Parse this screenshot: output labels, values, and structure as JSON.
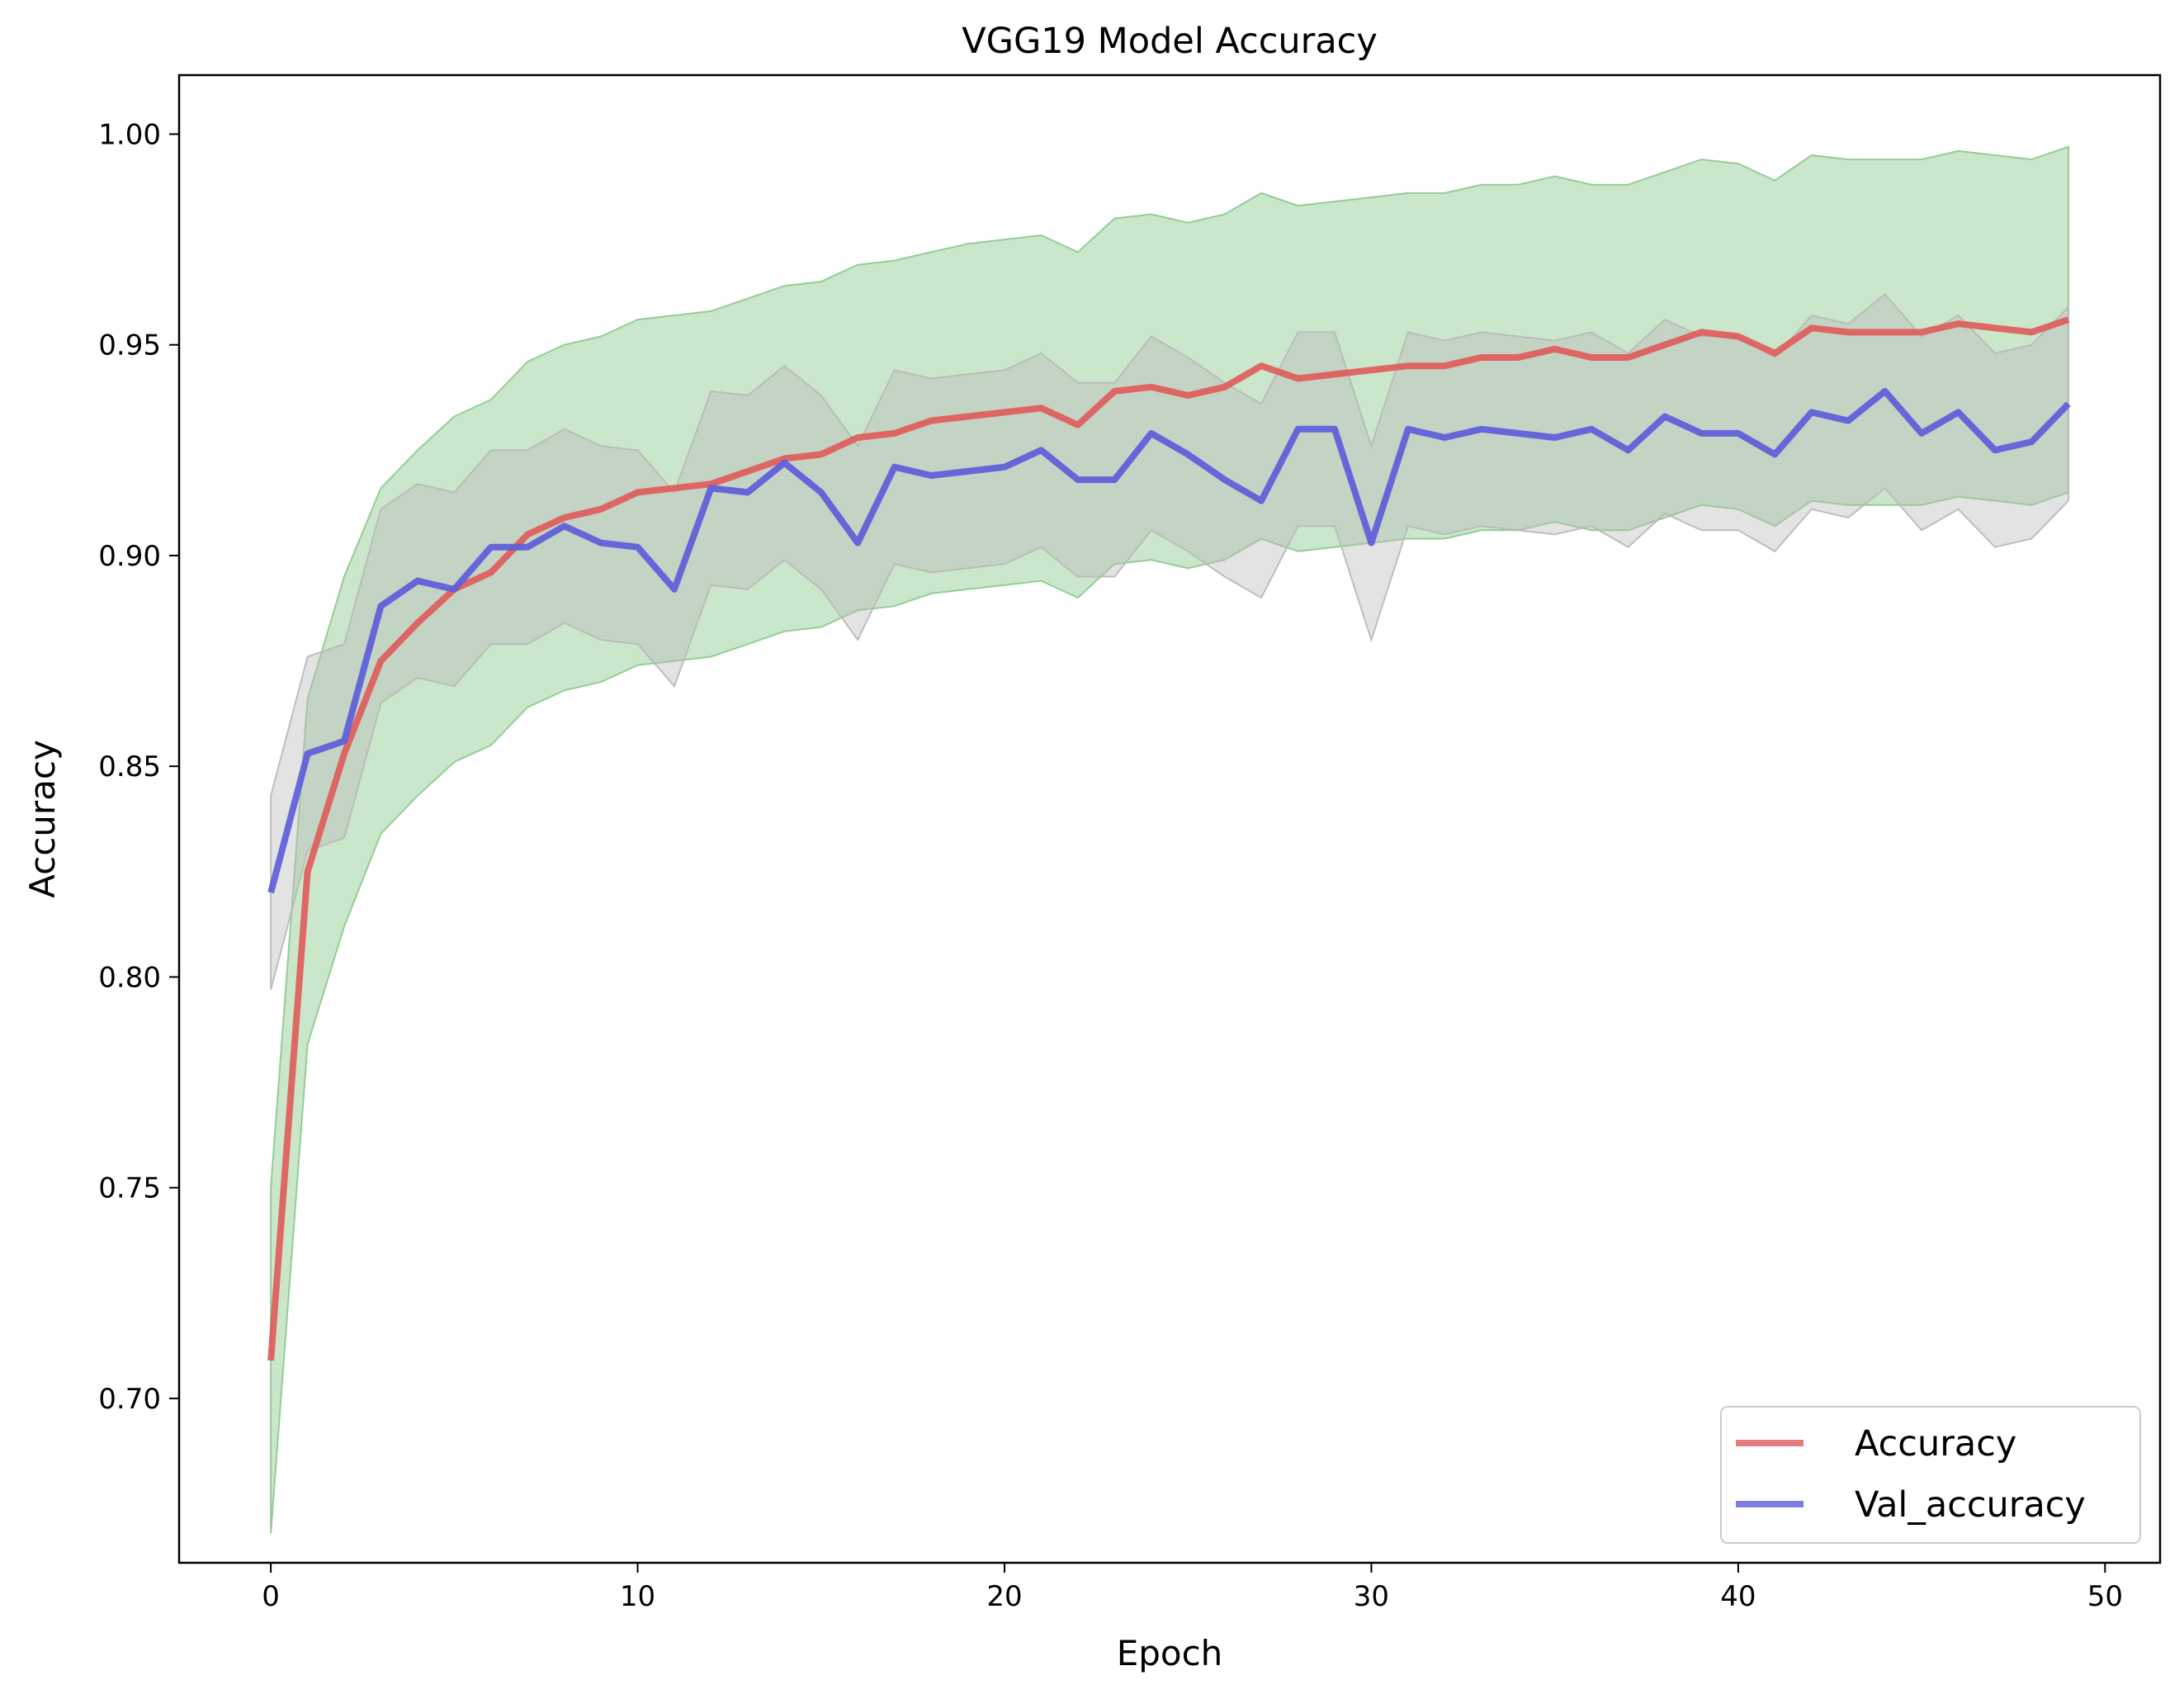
{
  "chart_data": {
    "type": "line",
    "title": "VGG19 Model Accuracy",
    "xlabel": "Epoch",
    "ylabel": "Accuracy",
    "xlim": [
      -2.5,
      51.5
    ],
    "ylim": [
      0.661,
      1.014
    ],
    "xticks": [
      0,
      10,
      20,
      30,
      40,
      50
    ],
    "yticks": [
      0.7,
      0.75,
      0.8,
      0.85,
      0.9,
      0.95,
      1.0
    ],
    "grid": false,
    "legend_position": "lower-right",
    "x": [
      0,
      1,
      2,
      3,
      4,
      5,
      6,
      7,
      8,
      9,
      10,
      11,
      12,
      13,
      14,
      15,
      16,
      17,
      18,
      19,
      20,
      21,
      22,
      23,
      24,
      25,
      26,
      27,
      28,
      29,
      30,
      31,
      32,
      33,
      34,
      35,
      36,
      37,
      38,
      39,
      40,
      41,
      42,
      43,
      44,
      45,
      46,
      47,
      48,
      49
    ],
    "series": [
      {
        "name": "Accuracy",
        "color": "#e05a5a",
        "band_color": "#8cc98c",
        "values": [
          0.709,
          0.825,
          0.853,
          0.875,
          0.884,
          0.892,
          0.896,
          0.905,
          0.909,
          0.911,
          0.915,
          0.916,
          0.917,
          0.92,
          0.923,
          0.924,
          0.928,
          0.929,
          0.932,
          0.933,
          0.934,
          0.935,
          0.931,
          0.939,
          0.94,
          0.938,
          0.94,
          0.945,
          0.942,
          0.943,
          0.944,
          0.945,
          0.945,
          0.947,
          0.947,
          0.949,
          0.947,
          0.947,
          0.95,
          0.953,
          0.952,
          0.948,
          0.954,
          0.953,
          0.953,
          0.953,
          0.955,
          0.954,
          0.953,
          0.956
        ],
        "band_upper": [
          0.75,
          0.866,
          0.895,
          0.916,
          0.925,
          0.933,
          0.937,
          0.946,
          0.95,
          0.952,
          0.956,
          0.957,
          0.958,
          0.961,
          0.964,
          0.965,
          0.969,
          0.97,
          0.972,
          0.974,
          0.975,
          0.976,
          0.972,
          0.98,
          0.981,
          0.979,
          0.981,
          0.986,
          0.983,
          0.984,
          0.985,
          0.986,
          0.986,
          0.988,
          0.988,
          0.99,
          0.988,
          0.988,
          0.991,
          0.994,
          0.993,
          0.989,
          0.995,
          0.994,
          0.994,
          0.994,
          0.996,
          0.995,
          0.994,
          0.997
        ],
        "band_lower": [
          0.668,
          0.784,
          0.812,
          0.834,
          0.843,
          0.851,
          0.855,
          0.864,
          0.868,
          0.87,
          0.874,
          0.875,
          0.876,
          0.879,
          0.882,
          0.883,
          0.887,
          0.888,
          0.891,
          0.892,
          0.893,
          0.894,
          0.89,
          0.898,
          0.899,
          0.897,
          0.899,
          0.904,
          0.901,
          0.902,
          0.903,
          0.904,
          0.904,
          0.906,
          0.906,
          0.908,
          0.906,
          0.906,
          0.909,
          0.912,
          0.911,
          0.907,
          0.913,
          0.912,
          0.912,
          0.912,
          0.914,
          0.913,
          0.912,
          0.915
        ]
      },
      {
        "name": "Val_accuracy",
        "color": "#5b5bdc",
        "band_color": "#b8b8b8",
        "values": [
          0.82,
          0.853,
          0.856,
          0.888,
          0.894,
          0.892,
          0.902,
          0.902,
          0.907,
          0.903,
          0.902,
          0.892,
          0.916,
          0.915,
          0.922,
          0.915,
          0.903,
          0.921,
          0.919,
          0.92,
          0.921,
          0.925,
          0.918,
          0.918,
          0.929,
          0.924,
          0.918,
          0.913,
          0.93,
          0.93,
          0.903,
          0.93,
          0.928,
          0.93,
          0.929,
          0.928,
          0.93,
          0.925,
          0.933,
          0.929,
          0.929,
          0.924,
          0.934,
          0.932,
          0.939,
          0.929,
          0.934,
          0.925,
          0.927,
          0.936
        ],
        "band_upper": [
          0.843,
          0.876,
          0.879,
          0.911,
          0.917,
          0.915,
          0.925,
          0.925,
          0.93,
          0.926,
          0.925,
          0.915,
          0.939,
          0.938,
          0.945,
          0.938,
          0.926,
          0.944,
          0.942,
          0.943,
          0.944,
          0.948,
          0.941,
          0.941,
          0.952,
          0.947,
          0.941,
          0.936,
          0.953,
          0.953,
          0.926,
          0.953,
          0.951,
          0.953,
          0.952,
          0.951,
          0.953,
          0.948,
          0.956,
          0.952,
          0.952,
          0.947,
          0.957,
          0.955,
          0.962,
          0.952,
          0.957,
          0.948,
          0.95,
          0.959
        ],
        "band_lower": [
          0.797,
          0.83,
          0.833,
          0.865,
          0.871,
          0.869,
          0.879,
          0.879,
          0.884,
          0.88,
          0.879,
          0.869,
          0.893,
          0.892,
          0.899,
          0.892,
          0.88,
          0.898,
          0.896,
          0.897,
          0.898,
          0.902,
          0.895,
          0.895,
          0.906,
          0.901,
          0.895,
          0.89,
          0.907,
          0.907,
          0.88,
          0.907,
          0.905,
          0.907,
          0.906,
          0.905,
          0.907,
          0.902,
          0.91,
          0.906,
          0.906,
          0.901,
          0.911,
          0.909,
          0.916,
          0.906,
          0.911,
          0.902,
          0.904,
          0.913
        ]
      }
    ]
  }
}
